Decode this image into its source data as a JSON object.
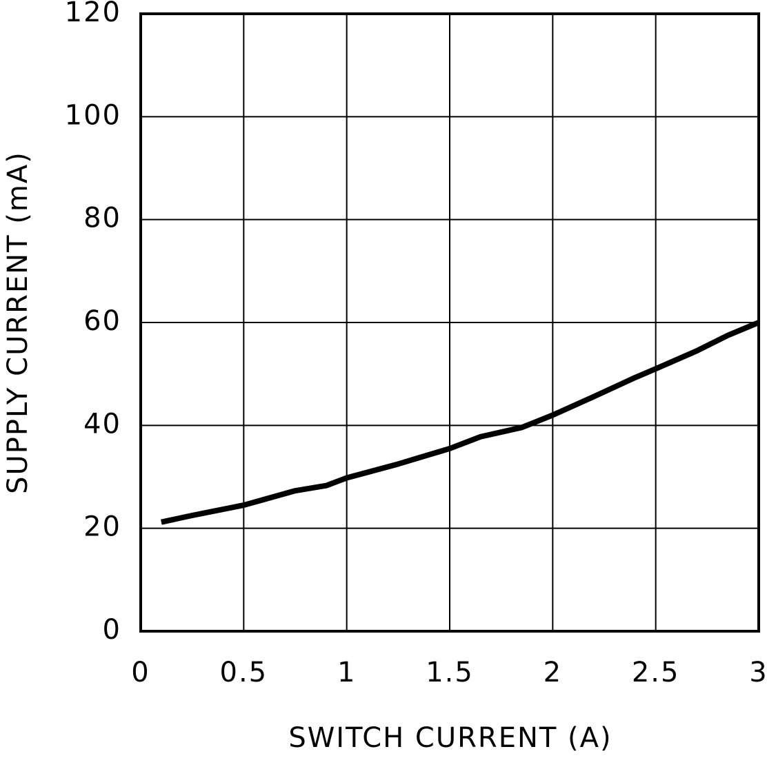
{
  "chart_data": {
    "type": "line",
    "x_label": "SWITCH CURRENT (A)",
    "y_label": "SUPPLY CURRENT (mA)",
    "x": [
      0.1,
      0.25,
      0.5,
      0.75,
      0.9,
      1.0,
      1.25,
      1.5,
      1.65,
      1.85,
      2.0,
      2.2,
      2.4,
      2.5,
      2.7,
      2.85,
      3.0
    ],
    "series": [
      {
        "color": "#000000",
        "values": [
          21.2,
          22.5,
          24.5,
          27.3,
          28.3,
          29.8,
          32.5,
          35.5,
          37.8,
          39.6,
          42,
          45.6,
          49.3,
          51,
          54.5,
          57.5,
          60
        ]
      }
    ],
    "xlim": [
      0,
      3
    ],
    "ylim": [
      0,
      120
    ],
    "xticks": [
      0,
      0.5,
      1,
      1.5,
      2,
      2.5,
      3
    ],
    "yticks": [
      0,
      20,
      40,
      60,
      80,
      100,
      120
    ],
    "grid": true
  }
}
